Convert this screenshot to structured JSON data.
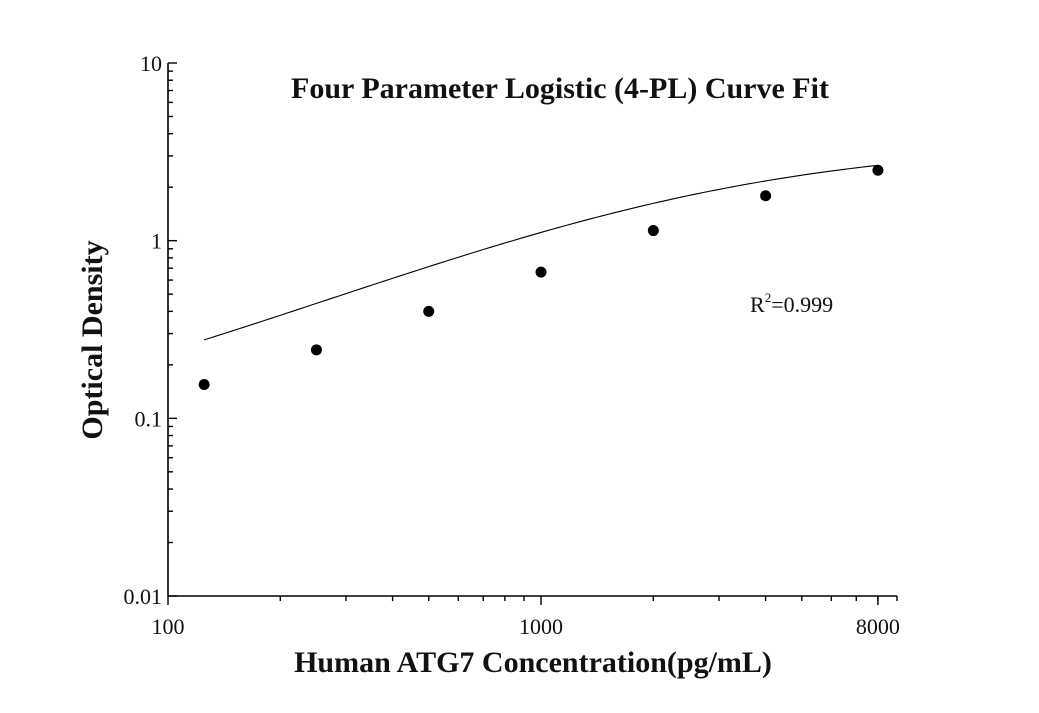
{
  "chart_data": {
    "type": "scatter",
    "title": "Four Parameter Logistic (4-PL) Curve Fit",
    "xlabel": "Human ATG7 Concentration(pg/mL)",
    "ylabel": "Optical Density",
    "x_scale": "log",
    "y_scale": "log",
    "xlim": [
      100,
      9000
    ],
    "ylim": [
      0.01,
      10
    ],
    "x_tick_labels": [
      {
        "value": 100,
        "label": "100"
      },
      {
        "value": 1000,
        "label": "1000"
      },
      {
        "value": 8000,
        "label": "8000"
      }
    ],
    "y_tick_labels": [
      {
        "value": 0.01,
        "label": "0.01"
      },
      {
        "value": 0.1,
        "label": "0.1"
      },
      {
        "value": 1,
        "label": "1"
      },
      {
        "value": 10,
        "label": "10"
      }
    ],
    "series": [
      {
        "points": [
          {
            "x": 125,
            "y": 0.155
          },
          {
            "x": 250,
            "y": 0.243
          },
          {
            "x": 500,
            "y": 0.4
          },
          {
            "x": 1000,
            "y": 0.665
          },
          {
            "x": 2000,
            "y": 1.14
          },
          {
            "x": 4000,
            "y": 1.79
          },
          {
            "x": 8000,
            "y": 2.49
          }
        ]
      }
    ],
    "fit": {
      "model": "4PL",
      "A": 0.06,
      "B": 0.9,
      "C": 2600,
      "D": 3.6
    },
    "annotation": {
      "base": "R",
      "sup": "2",
      "rest": "=0.999"
    },
    "grid": false,
    "legend": "none"
  }
}
